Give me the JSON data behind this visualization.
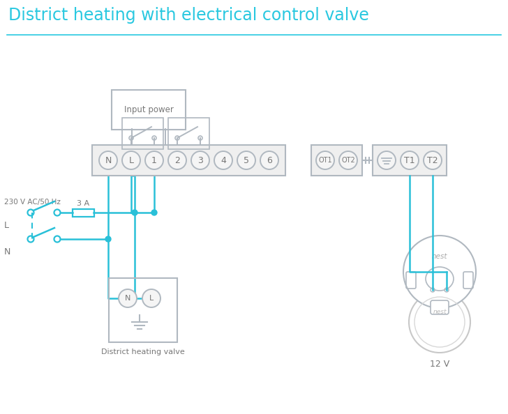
{
  "title": "District heating with electrical control valve",
  "title_color": "#29c8e0",
  "title_fontsize": 17,
  "bg_color": "#ffffff",
  "lc": "#29c0d8",
  "gc": "#b0b8c0",
  "tc": "#777777",
  "voltage_label": "230 V AC/50 Hz",
  "label_L": "L",
  "label_N": "N",
  "fuse_label": "3 A",
  "input_power_label": "Input power",
  "district_valve_label": "District heating valve",
  "nest_12v_label": "12 V",
  "terminals_main": [
    "N",
    "L",
    "1",
    "2",
    "3",
    "4",
    "5",
    "6"
  ],
  "terminals_ot": [
    "OT1",
    "OT2"
  ],
  "terminals_right": [
    "≡",
    "T1",
    "T2"
  ]
}
